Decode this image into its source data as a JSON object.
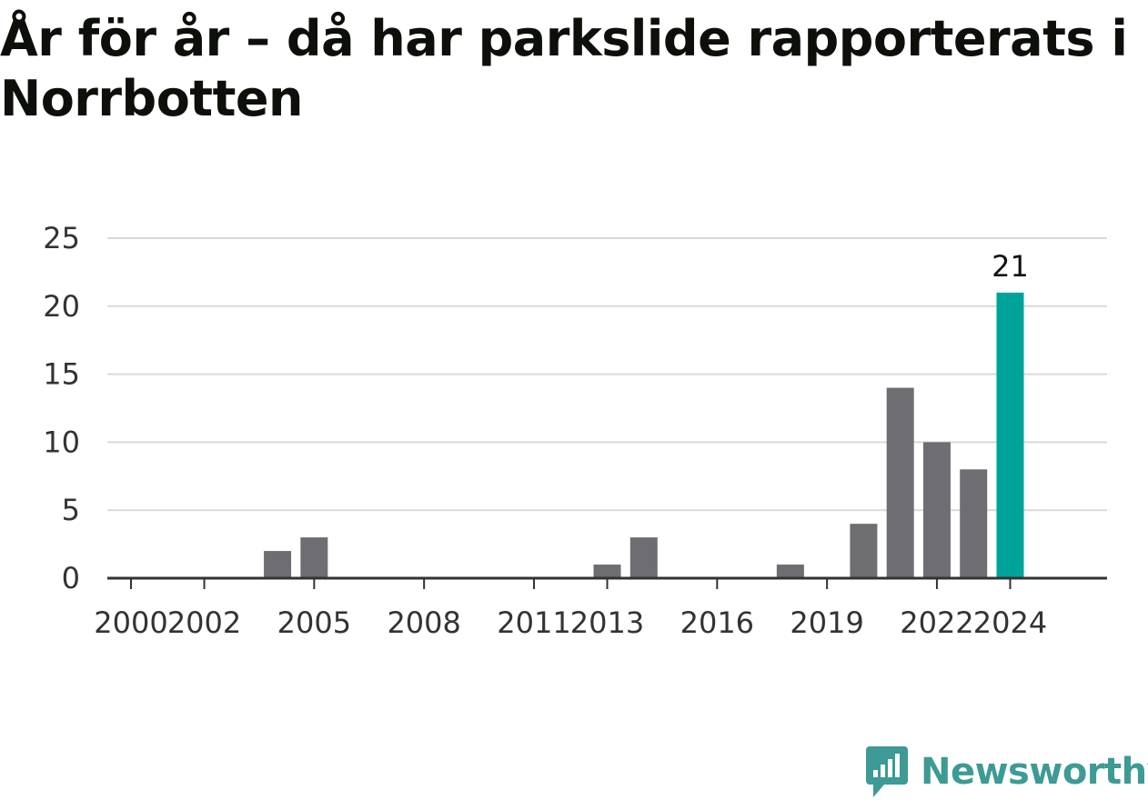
{
  "title": "År för år – då har parkslide rapporterats i Norrbotten",
  "brand": {
    "name": "Newsworthy",
    "icon": "newsworthy-logo-icon",
    "color": "#3d9a94"
  },
  "chart_data": {
    "type": "bar",
    "title": "År för år – då har parkslide rapporterats i Norrbotten",
    "xlabel": "",
    "ylabel": "",
    "categories": [
      2000,
      2001,
      2002,
      2003,
      2004,
      2005,
      2006,
      2007,
      2008,
      2009,
      2010,
      2011,
      2012,
      2013,
      2014,
      2015,
      2016,
      2017,
      2018,
      2019,
      2020,
      2021,
      2022,
      2023,
      2024
    ],
    "values": [
      0,
      0,
      0,
      0,
      2,
      3,
      0,
      0,
      0,
      0,
      0,
      0,
      0,
      1,
      3,
      0,
      0,
      0,
      1,
      0,
      4,
      14,
      10,
      8,
      21
    ],
    "x_tick_labels": [
      "2000",
      "2002",
      "2005",
      "2008",
      "2011",
      "2013",
      "2016",
      "2019",
      "2022",
      "2024"
    ],
    "y_ticks": [
      "0",
      "5",
      "10",
      "15",
      "20",
      "25"
    ],
    "ylim": [
      0,
      25
    ],
    "grid": true,
    "highlight": {
      "category": 2024,
      "label": "21"
    },
    "colors": {
      "bar": "#6e6d72",
      "highlight": "#00a39a",
      "grid": "#d9d9d9",
      "axis": "#333333"
    }
  }
}
